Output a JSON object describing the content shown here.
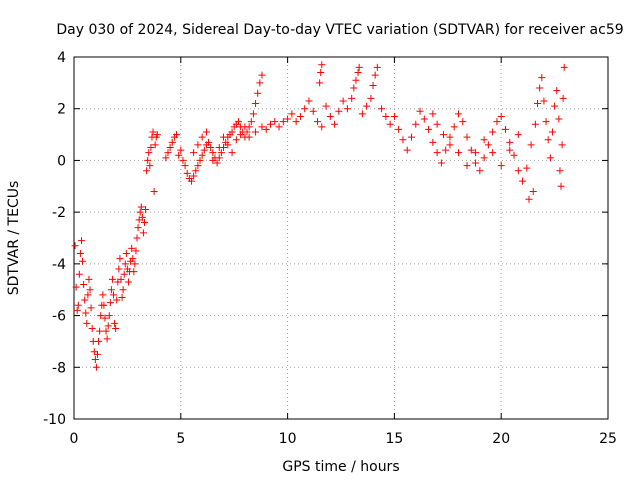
{
  "chart_data": {
    "type": "scatter",
    "title": "Day 030 of 2024, Sidereal Day-to-day VTEC variation (SDTVAR) for receiver ac59",
    "xlabel": "GPS time / hours",
    "ylabel": "SDTVAR / TECUs",
    "xlim": [
      0,
      25
    ],
    "ylim": [
      -10,
      4
    ],
    "xticks": [
      "0",
      "5",
      "10",
      "15",
      "20",
      "25"
    ],
    "yticks": [
      "-10",
      "-8",
      "-6",
      "-4",
      "-2",
      "0",
      "2",
      "4"
    ],
    "grid": true,
    "marker": "plus",
    "series": [
      {
        "name": "SDTVAR",
        "color": "#ff0000",
        "points": [
          [
            0.05,
            -3.3
          ],
          [
            0.1,
            -4.9
          ],
          [
            0.15,
            -5.8
          ],
          [
            0.2,
            -5.6
          ],
          [
            0.25,
            -4.4
          ],
          [
            0.3,
            -3.6
          ],
          [
            0.35,
            -3.1
          ],
          [
            0.4,
            -3.9
          ],
          [
            0.45,
            -4.8
          ],
          [
            0.5,
            -5.4
          ],
          [
            0.55,
            -5.9
          ],
          [
            0.6,
            -6.3
          ],
          [
            0.65,
            -5.2
          ],
          [
            0.7,
            -4.6
          ],
          [
            0.75,
            -5.0
          ],
          [
            0.8,
            -5.7
          ],
          [
            0.85,
            -6.5
          ],
          [
            0.9,
            -7.0
          ],
          [
            0.95,
            -7.4
          ],
          [
            1.0,
            -7.7
          ],
          [
            1.05,
            -8.0
          ],
          [
            1.1,
            -7.5
          ],
          [
            1.15,
            -7.0
          ],
          [
            1.2,
            -6.6
          ],
          [
            1.25,
            -6.0
          ],
          [
            1.3,
            -5.6
          ],
          [
            1.35,
            -5.2
          ],
          [
            1.4,
            -5.6
          ],
          [
            1.45,
            -6.1
          ],
          [
            1.5,
            -6.6
          ],
          [
            1.55,
            -6.9
          ],
          [
            1.6,
            -6.4
          ],
          [
            1.65,
            -6.0
          ],
          [
            1.7,
            -5.5
          ],
          [
            1.75,
            -5.0
          ],
          [
            1.8,
            -4.6
          ],
          [
            1.85,
            -5.2
          ],
          [
            1.9,
            -6.3
          ],
          [
            1.95,
            -6.5
          ],
          [
            2.0,
            -5.4
          ],
          [
            2.05,
            -4.7
          ],
          [
            2.1,
            -4.2
          ],
          [
            2.15,
            -3.8
          ],
          [
            2.2,
            -4.6
          ],
          [
            2.25,
            -5.3
          ],
          [
            2.3,
            -5.0
          ],
          [
            2.35,
            -4.4
          ],
          [
            2.4,
            -4.0
          ],
          [
            2.45,
            -3.6
          ],
          [
            2.5,
            -4.2
          ],
          [
            2.55,
            -4.7
          ],
          [
            2.6,
            -4.3
          ],
          [
            2.65,
            -3.9
          ],
          [
            2.7,
            -3.4
          ],
          [
            2.75,
            -3.8
          ],
          [
            2.8,
            -4.3
          ],
          [
            2.85,
            -4.0
          ],
          [
            2.9,
            -3.5
          ],
          [
            2.95,
            -3.0
          ],
          [
            3.0,
            -2.6
          ],
          [
            3.05,
            -2.3
          ],
          [
            3.1,
            -2.0
          ],
          [
            3.15,
            -1.8
          ],
          [
            3.2,
            -2.2
          ],
          [
            3.25,
            -2.8
          ],
          [
            3.3,
            -2.4
          ],
          [
            3.35,
            -1.9
          ],
          [
            3.4,
            -0.4
          ],
          [
            3.45,
            0.0
          ],
          [
            3.5,
            0.3
          ],
          [
            3.55,
            -0.2
          ],
          [
            3.6,
            0.5
          ],
          [
            3.65,
            0.9
          ],
          [
            3.7,
            1.1
          ],
          [
            3.75,
            -1.2
          ],
          [
            3.8,
            0.6
          ],
          [
            3.85,
            0.9
          ],
          [
            3.9,
            1.0
          ],
          [
            4.3,
            0.1
          ],
          [
            4.4,
            0.3
          ],
          [
            4.5,
            0.5
          ],
          [
            4.6,
            0.7
          ],
          [
            4.7,
            0.9
          ],
          [
            4.8,
            1.0
          ],
          [
            4.9,
            0.2
          ],
          [
            5.0,
            0.4
          ],
          [
            5.1,
            0.0
          ],
          [
            5.2,
            -0.2
          ],
          [
            5.3,
            -0.5
          ],
          [
            5.4,
            -0.7
          ],
          [
            5.5,
            -0.8
          ],
          [
            5.6,
            -0.6
          ],
          [
            5.7,
            -0.4
          ],
          [
            5.8,
            -0.2
          ],
          [
            5.9,
            0.0
          ],
          [
            6.0,
            0.2
          ],
          [
            6.1,
            0.4
          ],
          [
            6.2,
            0.6
          ],
          [
            6.3,
            0.7
          ],
          [
            6.4,
            0.5
          ],
          [
            6.5,
            0.3
          ],
          [
            6.6,
            0.1
          ],
          [
            6.7,
            -0.1
          ],
          [
            6.8,
            0.1
          ],
          [
            6.9,
            0.3
          ],
          [
            7.0,
            0.5
          ],
          [
            7.1,
            0.7
          ],
          [
            7.2,
            0.9
          ],
          [
            7.3,
            1.0
          ],
          [
            7.4,
            1.1
          ],
          [
            7.5,
            1.3
          ],
          [
            7.6,
            1.4
          ],
          [
            7.7,
            1.5
          ],
          [
            7.8,
            1.3
          ],
          [
            7.9,
            1.1
          ],
          [
            8.0,
            0.9
          ],
          [
            8.1,
            1.1
          ],
          [
            8.2,
            1.3
          ],
          [
            8.3,
            1.5
          ],
          [
            8.4,
            1.8
          ],
          [
            8.5,
            2.2
          ],
          [
            8.6,
            2.6
          ],
          [
            8.7,
            3.0
          ],
          [
            8.8,
            3.3
          ],
          [
            5.6,
            0.3
          ],
          [
            5.8,
            0.6
          ],
          [
            6.0,
            0.9
          ],
          [
            6.2,
            1.1
          ],
          [
            6.5,
            0.0
          ],
          [
            6.8,
            0.5
          ],
          [
            7.0,
            0.9
          ],
          [
            7.2,
            0.6
          ],
          [
            7.4,
            0.3
          ],
          [
            7.6,
            0.8
          ],
          [
            7.8,
            1.0
          ],
          [
            8.0,
            1.3
          ],
          [
            8.2,
            0.9
          ],
          [
            8.5,
            1.1
          ],
          [
            8.8,
            1.3
          ],
          [
            9.0,
            1.2
          ],
          [
            9.2,
            1.4
          ],
          [
            9.4,
            1.5
          ],
          [
            9.6,
            1.3
          ],
          [
            9.8,
            1.5
          ],
          [
            10.0,
            1.6
          ],
          [
            10.2,
            1.8
          ],
          [
            10.4,
            1.5
          ],
          [
            10.6,
            1.7
          ],
          [
            10.8,
            2.0
          ],
          [
            11.0,
            2.3
          ],
          [
            11.2,
            1.9
          ],
          [
            11.4,
            1.5
          ],
          [
            11.6,
            1.3
          ],
          [
            11.5,
            3.0
          ],
          [
            11.55,
            3.4
          ],
          [
            11.6,
            3.7
          ],
          [
            11.8,
            2.1
          ],
          [
            12.0,
            1.7
          ],
          [
            12.2,
            1.4
          ],
          [
            12.4,
            1.9
          ],
          [
            12.6,
            2.3
          ],
          [
            12.8,
            2.0
          ],
          [
            13.0,
            2.4
          ],
          [
            13.1,
            2.8
          ],
          [
            13.2,
            3.1
          ],
          [
            13.3,
            3.4
          ],
          [
            13.35,
            3.6
          ],
          [
            13.5,
            1.8
          ],
          [
            13.7,
            2.1
          ],
          [
            13.9,
            2.4
          ],
          [
            14.0,
            2.9
          ],
          [
            14.1,
            3.3
          ],
          [
            14.2,
            3.6
          ],
          [
            14.4,
            2.0
          ],
          [
            14.6,
            1.7
          ],
          [
            14.8,
            1.4
          ],
          [
            15.0,
            1.7
          ],
          [
            15.2,
            1.2
          ],
          [
            15.4,
            0.8
          ],
          [
            15.6,
            0.4
          ],
          [
            15.8,
            0.9
          ],
          [
            16.0,
            1.4
          ],
          [
            16.2,
            1.9
          ],
          [
            16.4,
            1.6
          ],
          [
            16.6,
            1.2
          ],
          [
            16.8,
            0.7
          ],
          [
            17.0,
            0.3
          ],
          [
            17.2,
            -0.1
          ],
          [
            17.4,
            0.4
          ],
          [
            17.6,
            0.9
          ],
          [
            17.8,
            1.3
          ],
          [
            18.0,
            1.8
          ],
          [
            18.2,
            1.5
          ],
          [
            18.4,
            0.9
          ],
          [
            18.6,
            0.4
          ],
          [
            18.8,
            -0.1
          ],
          [
            19.0,
            -0.4
          ],
          [
            19.2,
            0.1
          ],
          [
            19.4,
            0.6
          ],
          [
            19.6,
            1.1
          ],
          [
            19.8,
            1.5
          ],
          [
            20.0,
            1.7
          ],
          [
            20.2,
            1.2
          ],
          [
            20.4,
            0.7
          ],
          [
            20.6,
            0.2
          ],
          [
            20.8,
            -0.4
          ],
          [
            21.0,
            -0.8
          ],
          [
            21.2,
            -0.3
          ],
          [
            21.4,
            0.6
          ],
          [
            21.6,
            1.4
          ],
          [
            21.7,
            2.2
          ],
          [
            21.8,
            2.8
          ],
          [
            21.9,
            3.2
          ],
          [
            22.0,
            2.3
          ],
          [
            22.1,
            1.5
          ],
          [
            22.2,
            0.8
          ],
          [
            22.3,
            0.1
          ],
          [
            22.4,
            1.1
          ],
          [
            22.5,
            2.1
          ],
          [
            22.6,
            2.7
          ],
          [
            22.7,
            1.6
          ],
          [
            22.75,
            -0.4
          ],
          [
            22.8,
            -1.0
          ],
          [
            22.85,
            0.6
          ],
          [
            22.9,
            2.4
          ],
          [
            22.95,
            3.6
          ],
          [
            16.8,
            1.8
          ],
          [
            17.0,
            1.4
          ],
          [
            17.3,
            1.0
          ],
          [
            17.6,
            0.6
          ],
          [
            18.0,
            0.3
          ],
          [
            18.4,
            -0.2
          ],
          [
            18.8,
            0.3
          ],
          [
            19.2,
            0.8
          ],
          [
            19.6,
            0.3
          ],
          [
            20.0,
            -0.2
          ],
          [
            20.4,
            0.4
          ],
          [
            20.8,
            1.0
          ],
          [
            21.3,
            -1.5
          ],
          [
            21.5,
            -1.2
          ]
        ]
      }
    ]
  }
}
